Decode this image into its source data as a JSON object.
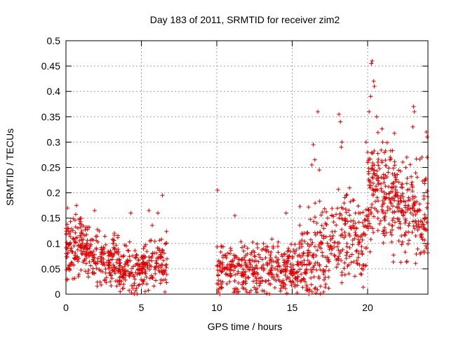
{
  "chart_data": {
    "type": "scatter",
    "title": "Day 183 of 2011, SRMTID for receiver zim2",
    "xlabel": "GPS time / hours",
    "ylabel": "SRMTID / TECUs",
    "xlim": [
      0,
      24
    ],
    "ylim": [
      0,
      0.5
    ],
    "x_ticks": [
      0,
      5,
      10,
      15,
      20
    ],
    "y_ticks": [
      0,
      0.05,
      0.1,
      0.15,
      0.2,
      0.25,
      0.3,
      0.35,
      0.4,
      0.45,
      0.5
    ],
    "x_tick_labels": [
      "0",
      "5",
      "10",
      "15",
      "20"
    ],
    "y_tick_labels": [
      "0",
      "0.05",
      "0.1",
      "0.15",
      "0.2",
      "0.25",
      "0.3",
      "0.35",
      "0.4",
      "0.45",
      "0.5"
    ],
    "grid": true,
    "marker": "+",
    "color": "#e00000",
    "series": [
      {
        "name": "SRMTID",
        "clusters": [
          {
            "x_range": [
              0.0,
              1.5
            ],
            "y_center": 0.095,
            "y_spread": 0.04,
            "count": 140
          },
          {
            "x_range": [
              1.5,
              3.5
            ],
            "y_center": 0.07,
            "y_spread": 0.035,
            "count": 150
          },
          {
            "x_range": [
              3.5,
              5.5
            ],
            "y_center": 0.05,
            "y_spread": 0.03,
            "count": 150
          },
          {
            "x_range": [
              5.5,
              6.7
            ],
            "y_center": 0.06,
            "y_spread": 0.04,
            "count": 80
          },
          {
            "x_range": [
              10.0,
              12.5
            ],
            "y_center": 0.05,
            "y_spread": 0.035,
            "count": 170
          },
          {
            "x_range": [
              12.5,
              15.5
            ],
            "y_center": 0.05,
            "y_spread": 0.035,
            "count": 200
          },
          {
            "x_range": [
              15.5,
              17.5
            ],
            "y_center": 0.08,
            "y_spread": 0.06,
            "count": 150
          },
          {
            "x_range": [
              17.5,
              20.0
            ],
            "y_center": 0.11,
            "y_spread": 0.06,
            "count": 160
          },
          {
            "x_range": [
              20.0,
              22.0
            ],
            "y_center": 0.2,
            "y_spread": 0.07,
            "count": 200
          },
          {
            "x_range": [
              22.0,
              24.0
            ],
            "y_center": 0.16,
            "y_spread": 0.06,
            "count": 160
          }
        ],
        "points": [
          [
            0.1,
            0.17
          ],
          [
            0.15,
            0.13
          ],
          [
            6.4,
            0.195
          ],
          [
            10.05,
            0.205
          ],
          [
            16.7,
            0.36
          ],
          [
            18.1,
            0.355
          ],
          [
            18.2,
            0.34
          ],
          [
            20.3,
            0.46
          ],
          [
            20.25,
            0.455
          ],
          [
            20.4,
            0.42
          ],
          [
            20.45,
            0.41
          ],
          [
            20.2,
            0.39
          ],
          [
            20.1,
            0.36
          ],
          [
            20.6,
            0.35
          ],
          [
            23.05,
            0.37
          ],
          [
            23.1,
            0.36
          ],
          [
            23.0,
            0.33
          ],
          [
            23.9,
            0.32
          ],
          [
            23.95,
            0.31
          ],
          [
            16.4,
            0.295
          ],
          [
            16.5,
            0.265
          ],
          [
            16.3,
            0.255
          ],
          [
            16.8,
            0.245
          ],
          [
            18.3,
            0.3
          ],
          [
            18.25,
            0.29
          ],
          [
            19.9,
            0.3
          ],
          [
            20.0,
            0.28
          ],
          [
            21.0,
            0.3
          ],
          [
            21.5,
            0.27
          ],
          [
            22.6,
            0.27
          ],
          [
            23.6,
            0.27
          ],
          [
            0.7,
            0.175
          ],
          [
            1.9,
            0.165
          ],
          [
            4.3,
            0.16
          ],
          [
            5.5,
            0.165
          ],
          [
            6.1,
            0.16
          ],
          [
            11.2,
            0.155
          ],
          [
            14.6,
            0.16
          ],
          [
            10.2,
            0.0
          ],
          [
            16.1,
            0.0
          ]
        ]
      }
    ]
  }
}
